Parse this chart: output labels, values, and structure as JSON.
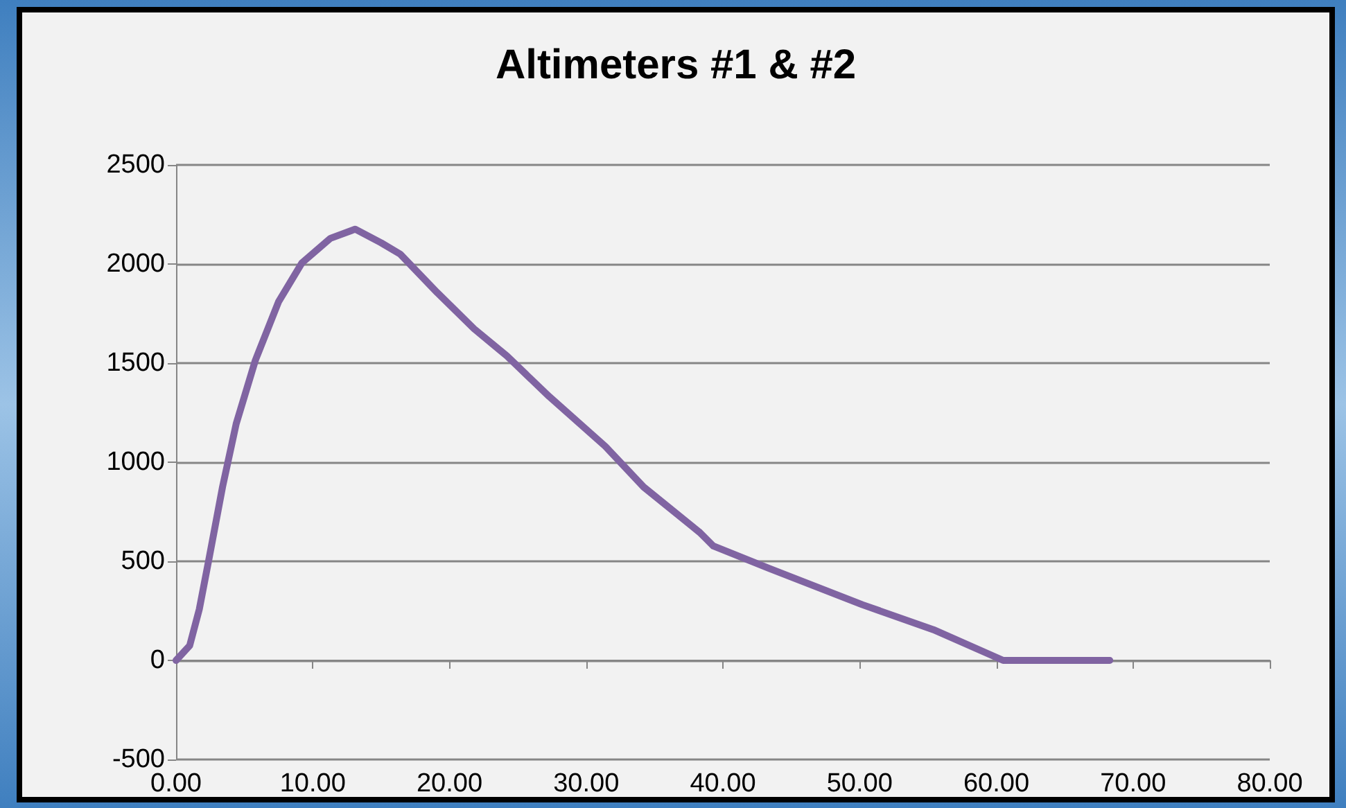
{
  "chart_data": {
    "type": "line",
    "title": "Altimeters #1 & #2",
    "x": [
      0,
      1.0,
      1.7,
      2.4,
      3.4,
      4.4,
      5.8,
      7.5,
      9.2,
      11.3,
      13.1,
      15.0,
      16.4,
      19.1,
      21.8,
      24.2,
      27.3,
      31.4,
      34.2,
      38.3,
      39.3,
      43.4,
      50.2,
      55.4,
      60.5,
      68.3
    ],
    "series": [
      {
        "color": "#8064a2",
        "values": [
          0,
          75,
          258,
          509,
          875,
          1194,
          1514,
          1810,
          2005,
          2130,
          2176,
          2107,
          2050,
          1856,
          1673,
          1536,
          1331,
          1080,
          875,
          646,
          577,
          464,
          281,
          155,
          0,
          0
        ]
      }
    ],
    "xlim": [
      0,
      80
    ],
    "xticks": [
      {
        "value": 0,
        "label": "0.00"
      },
      {
        "value": 10,
        "label": "10.00"
      },
      {
        "value": 20,
        "label": "20.00"
      },
      {
        "value": 30,
        "label": "30.00"
      },
      {
        "value": 40,
        "label": "40.00"
      },
      {
        "value": 50,
        "label": "50.00"
      },
      {
        "value": 60,
        "label": "60.00"
      },
      {
        "value": 70,
        "label": "70.00"
      },
      {
        "value": 80,
        "label": "80.00"
      }
    ],
    "ylim": [
      -500,
      2500
    ],
    "yticks": [
      -500,
      0,
      500,
      1000,
      1500,
      2000,
      2500
    ],
    "grid": "y",
    "marker": "none",
    "line_style": "solid"
  }
}
